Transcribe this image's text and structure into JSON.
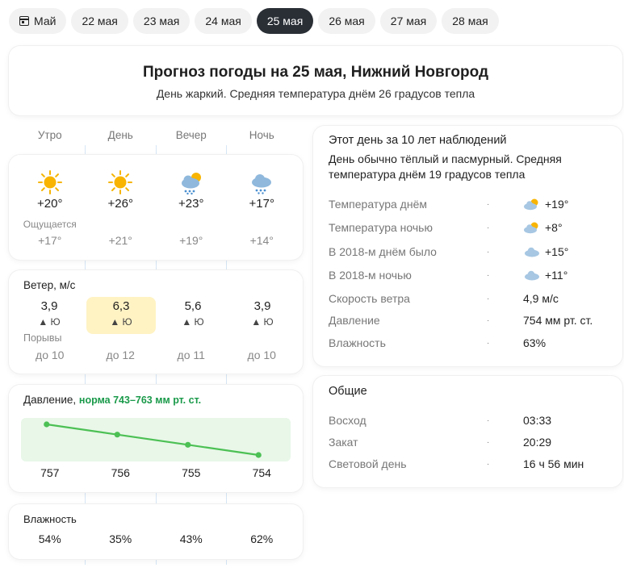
{
  "tabs": [
    {
      "label": "Май",
      "icon": "calendar-icon",
      "active": false
    },
    {
      "label": "22 мая",
      "active": false
    },
    {
      "label": "23 мая",
      "active": false
    },
    {
      "label": "24 мая",
      "active": false
    },
    {
      "label": "25 мая",
      "active": true
    },
    {
      "label": "26 мая",
      "active": false
    },
    {
      "label": "27 мая",
      "active": false
    },
    {
      "label": "28 мая",
      "active": false
    }
  ],
  "header": {
    "title": "Прогноз погоды на 25 мая, Нижний Новгород",
    "subtitle": "День жаркий. Средняя температура днём 26 градусов тепла"
  },
  "periods": [
    "Утро",
    "День",
    "Вечер",
    "Ночь"
  ],
  "temperature": {
    "icons": [
      "sun-icon",
      "sun-icon",
      "cloud-sun-rain-icon",
      "cloud-rain-icon"
    ],
    "values": [
      "+20°",
      "+26°",
      "+23°",
      "+17°"
    ],
    "feels_label": "Ощущается",
    "feels": [
      "+17°",
      "+21°",
      "+19°",
      "+14°"
    ]
  },
  "wind": {
    "title": "Ветер, м/с",
    "values": [
      "3,9",
      "6,3",
      "5,6",
      "3,9"
    ],
    "directions": [
      "Ю",
      "Ю",
      "Ю",
      "Ю"
    ],
    "highlight_index": 1,
    "gusts_label": "Порывы",
    "gusts": [
      "до 10",
      "до 12",
      "до 11",
      "до 10"
    ]
  },
  "pressure": {
    "title": "Давление,",
    "norm": "норма 743–763 мм рт. ст.",
    "values": [
      757,
      756,
      755,
      754
    ],
    "labels": [
      "757",
      "756",
      "755",
      "754"
    ]
  },
  "humidity": {
    "title": "Влажность",
    "values": [
      "54%",
      "35%",
      "43%",
      "62%"
    ]
  },
  "climate": {
    "title": "Этот день за 10 лет наблюдений",
    "description": "День обычно тёплый и пасмурный. Средняя температура днём 19 градусов тепла",
    "rows": [
      {
        "label": "Температура днём",
        "value": "+19°",
        "icon": "cloud-sun-icon"
      },
      {
        "label": "Температура ночью",
        "value": "+8°",
        "icon": "cloud-sun-icon"
      },
      {
        "label": "В 2018-м днём было",
        "value": "+15°",
        "icon": "cloud-icon"
      },
      {
        "label": "В 2018-м ночью",
        "value": "+11°",
        "icon": "cloud-icon"
      },
      {
        "label": "Скорость ветра",
        "value": "4,9 м/с"
      },
      {
        "label": "Давление",
        "value": "754 мм рт. ст."
      },
      {
        "label": "Влажность",
        "value": "63%"
      }
    ]
  },
  "common": {
    "title": "Общие",
    "rows": [
      {
        "label": "Восход",
        "value": "03:33"
      },
      {
        "label": "Закат",
        "value": "20:29"
      },
      {
        "label": "Световой день",
        "value": "16 ч 56 мин"
      }
    ]
  },
  "separator_dot": "·",
  "colors": {
    "accent": "#2a2f36",
    "norm_green": "#1a9a4a",
    "line_green": "#4cc054",
    "band": "#e6f7e6",
    "wind_highlight": "#fff3c4"
  }
}
